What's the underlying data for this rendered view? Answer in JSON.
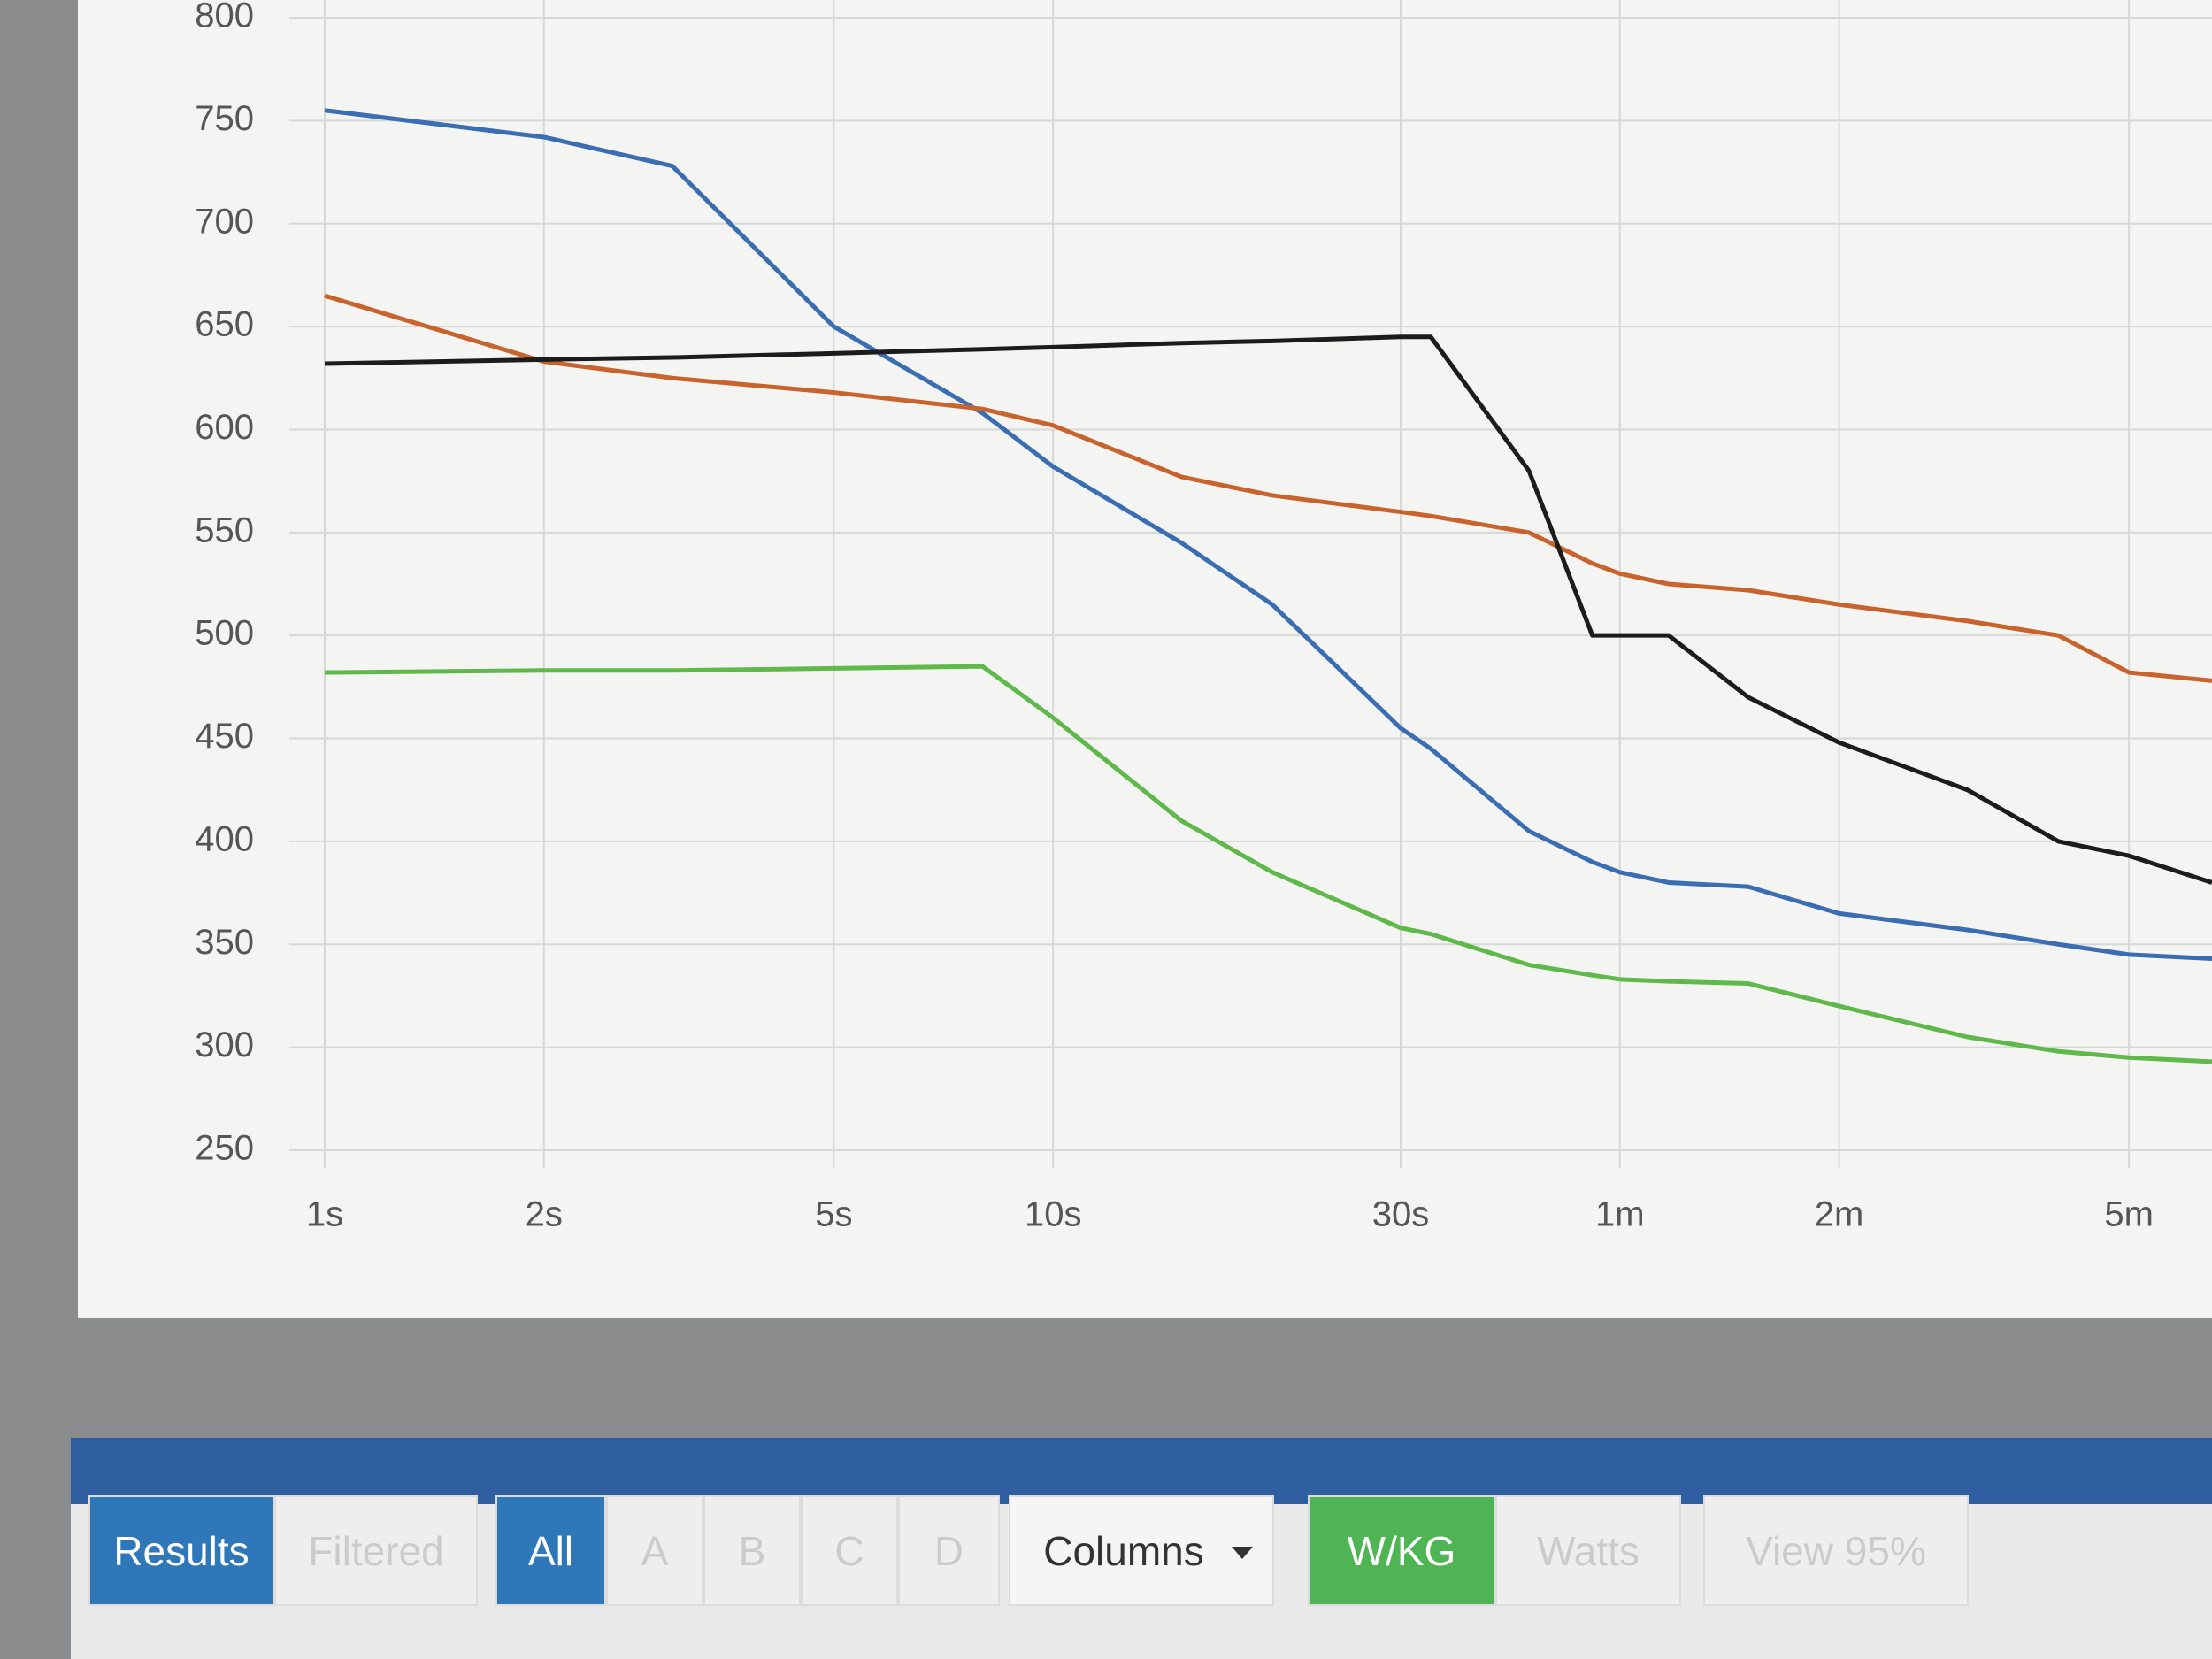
{
  "chart_data": {
    "type": "line",
    "x": [
      1,
      2,
      3,
      5,
      8,
      10,
      15,
      20,
      30,
      33,
      45,
      55,
      60,
      70,
      90,
      120,
      180,
      240,
      300,
      390
    ],
    "xscale": "log",
    "xlim": [
      1,
      390
    ],
    "xticks": [
      {
        "value": 1,
        "label": "1s"
      },
      {
        "value": 2,
        "label": "2s"
      },
      {
        "value": 5,
        "label": "5s"
      },
      {
        "value": 10,
        "label": "10s"
      },
      {
        "value": 30,
        "label": "30s"
      },
      {
        "value": 60,
        "label": "1m"
      },
      {
        "value": 120,
        "label": "2m"
      },
      {
        "value": 300,
        "label": "5m"
      }
    ],
    "ylim": [
      250,
      800
    ],
    "yticks": [
      250,
      300,
      350,
      400,
      450,
      500,
      550,
      600,
      650,
      700,
      750,
      800
    ],
    "grid": true,
    "series": [
      {
        "color": "#3b6db3",
        "values": [
          755,
          742,
          728,
          650,
          608,
          582,
          545,
          515,
          455,
          445,
          405,
          390,
          385,
          380,
          378,
          365,
          357,
          350,
          345,
          343
        ]
      },
      {
        "color": "#c8632e",
        "values": [
          665,
          633,
          625,
          618,
          610,
          602,
          577,
          568,
          560,
          558,
          550,
          535,
          530,
          525,
          522,
          515,
          507,
          500,
          482,
          478
        ]
      },
      {
        "color": "#1c1c1c",
        "values": [
          632,
          634,
          635,
          637,
          639,
          640,
          642,
          643,
          645,
          645,
          580,
          500,
          500,
          500,
          470,
          448,
          425,
          400,
          393,
          380
        ]
      },
      {
        "color": "#5fb84a",
        "values": [
          482,
          483,
          483,
          484,
          485,
          460,
          410,
          385,
          358,
          355,
          340,
          335,
          333,
          332,
          331,
          320,
          305,
          298,
          295,
          293
        ]
      }
    ]
  },
  "toolbar": {
    "buttons": [
      "Results",
      "Filtered",
      "All",
      "A",
      "B",
      "C",
      "D",
      "Columns",
      "W/KG",
      "Watts",
      "View 95%"
    ]
  }
}
